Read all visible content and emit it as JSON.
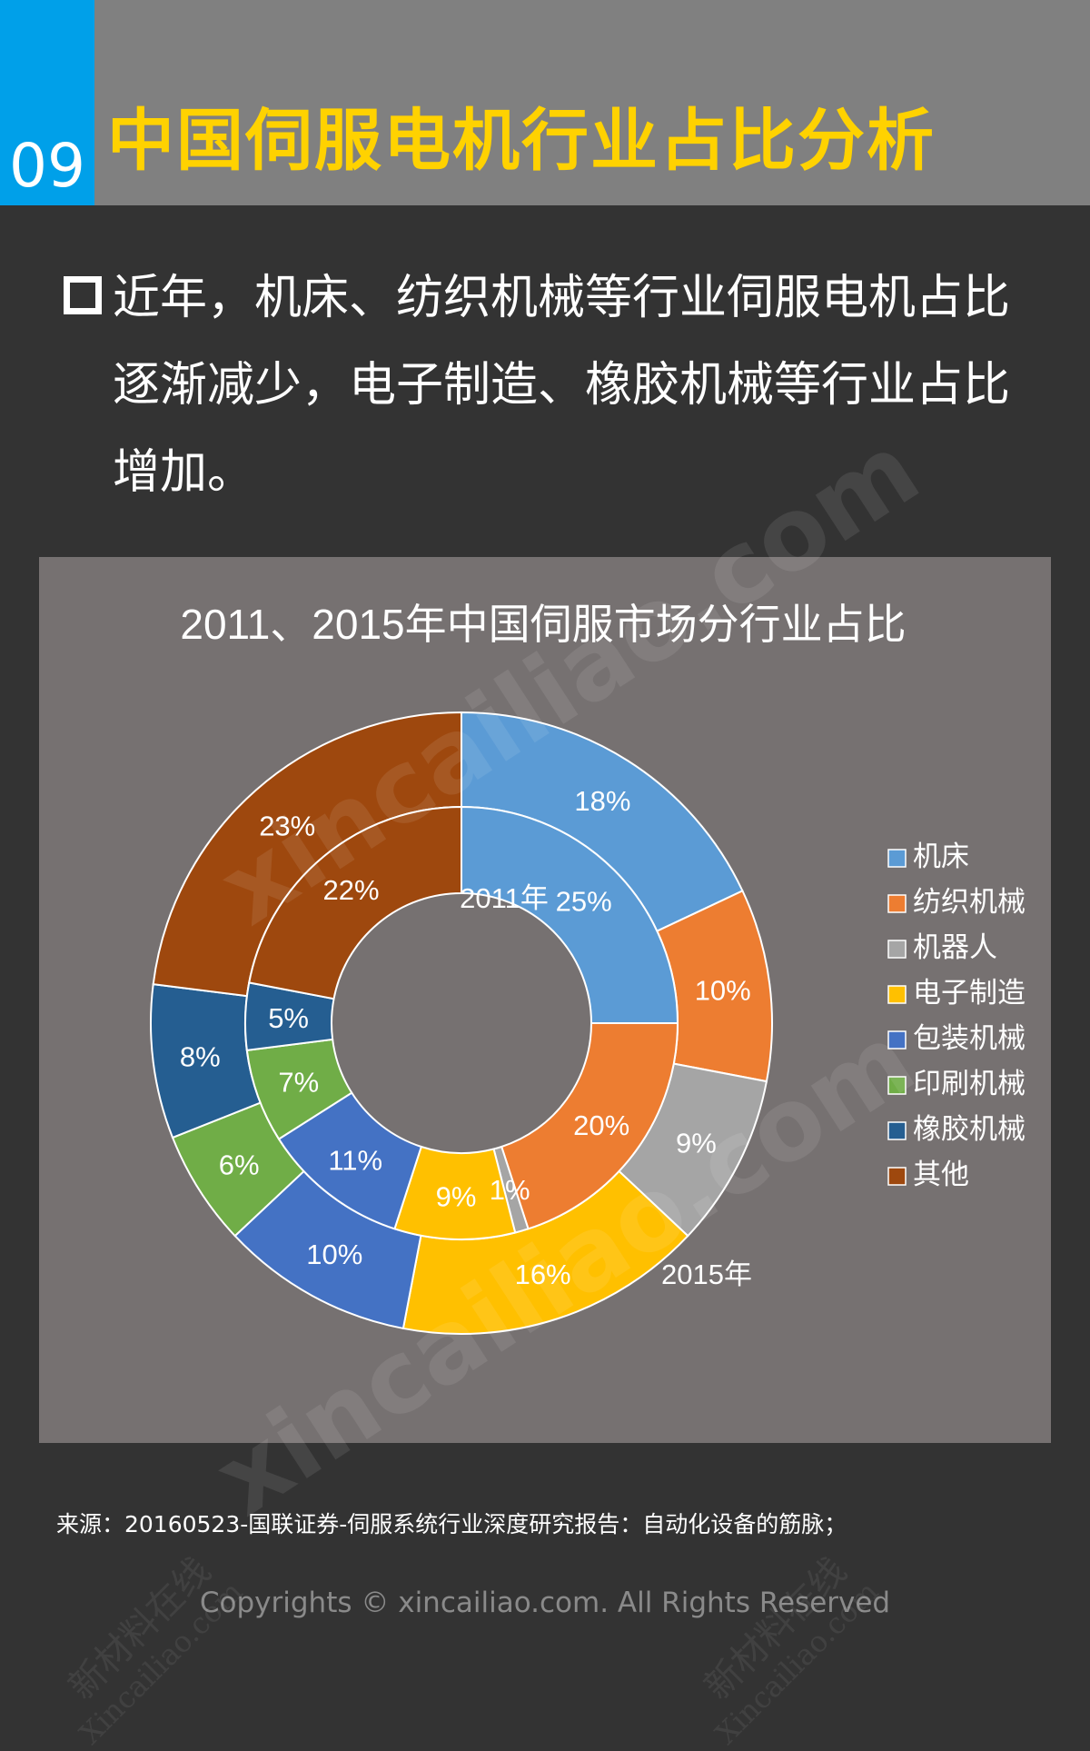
{
  "header": {
    "number": "09",
    "title": "中国伺服电机行业占比分析"
  },
  "bullet": {
    "text": "近年，机床、纺织机械等行业伺服电机占比逐渐减少，电子制造、橡胶机械等行业占比增加。"
  },
  "colors": {
    "header_bg": "#808080",
    "number_bg": "#00a0e9",
    "title": "#ffd200",
    "panel_bg": "#767171"
  },
  "chart_data": {
    "type": "donut",
    "title": "2011、2015年中国伺服市场分行业占比",
    "inner_label": "2011年",
    "outer_label": "2015年",
    "categories": [
      "机床",
      "纺织机械",
      "机器人",
      "电子制造",
      "包装机械",
      "印刷机械",
      "橡胶机械",
      "其他"
    ],
    "colors": [
      "#5b9bd5",
      "#ed7d31",
      "#a5a5a5",
      "#ffc000",
      "#4472c4",
      "#70ad47",
      "#255e91",
      "#9e480e"
    ],
    "series": [
      {
        "name": "2011年",
        "values": [
          25,
          20,
          1,
          9,
          11,
          7,
          5,
          22
        ]
      },
      {
        "name": "2015年",
        "values": [
          18,
          10,
          9,
          16,
          10,
          6,
          8,
          23
        ]
      }
    ],
    "legend_position": "right"
  },
  "footer": {
    "source": "来源：20160523-国联证券-伺服系统行业深度研究报告：自动化设备的筋脉；",
    "copyright": "Copyrights © xincailiao.com. All Rights Reserved"
  },
  "watermarks": {
    "main": "xincailiao.com",
    "small_cn": "新材料在线",
    "small_en": "Xincailiao.com"
  }
}
